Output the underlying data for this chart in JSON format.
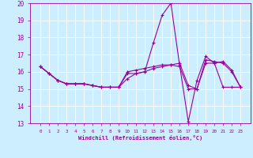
{
  "title": "",
  "xlabel": "Windchill (Refroidissement éolien,°C)",
  "ylabel": "",
  "background_color": "#cceeff",
  "line_color": "#990099",
  "grid_color": "#ffffff",
  "hours": [
    0,
    1,
    2,
    3,
    4,
    5,
    6,
    7,
    8,
    9,
    10,
    11,
    12,
    13,
    14,
    15,
    16,
    17,
    18,
    19,
    20,
    21,
    22,
    23
  ],
  "series1": [
    16.3,
    15.9,
    15.5,
    15.3,
    15.3,
    15.3,
    15.2,
    15.1,
    15.1,
    15.1,
    15.9,
    15.9,
    16.0,
    17.7,
    19.3,
    20.0,
    16.4,
    13.1,
    15.5,
    16.9,
    16.5,
    16.6,
    16.1,
    15.1
  ],
  "series2": [
    16.3,
    15.9,
    15.5,
    15.3,
    15.3,
    15.3,
    15.2,
    15.1,
    15.1,
    15.1,
    16.0,
    16.1,
    16.2,
    16.3,
    16.4,
    16.4,
    16.3,
    15.0,
    15.0,
    16.5,
    16.5,
    15.1,
    15.1,
    15.1
  ],
  "series3": [
    16.3,
    15.9,
    15.5,
    15.3,
    15.3,
    15.3,
    15.2,
    15.1,
    15.1,
    15.1,
    15.6,
    15.9,
    16.0,
    16.2,
    16.3,
    16.4,
    16.5,
    15.2,
    15.0,
    16.7,
    16.6,
    16.5,
    16.0,
    15.1
  ],
  "ylim": [
    13,
    20
  ],
  "yticks": [
    13,
    14,
    15,
    16,
    17,
    18,
    19,
    20
  ],
  "xtick_labels": [
    "0",
    "1",
    "2",
    "3",
    "4",
    "5",
    "6",
    "7",
    "8",
    "9",
    "10",
    "11",
    "12",
    "13",
    "14",
    "15",
    "16",
    "17",
    "18",
    "19",
    "20",
    "21",
    "22",
    "23"
  ],
  "marker": "+",
  "markersize": 3,
  "linewidth": 0.8
}
